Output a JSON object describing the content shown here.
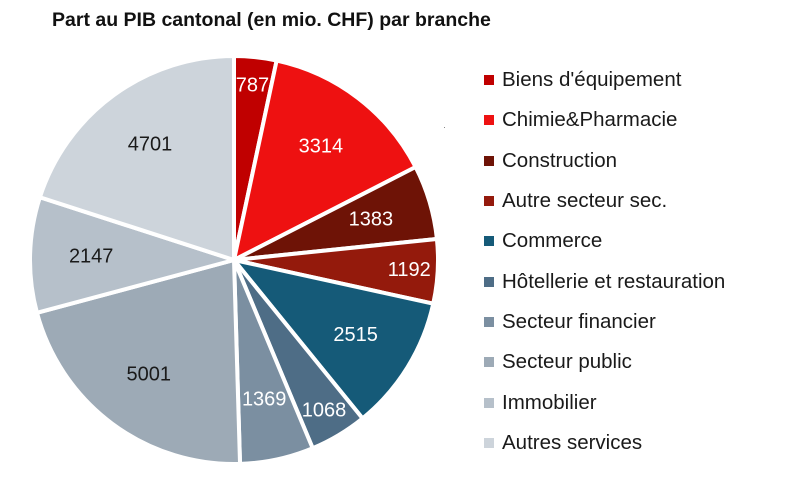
{
  "chart_data": {
    "type": "pie",
    "title": "Part au PIB cantonal (en mio. CHF) par branche",
    "legend_position": "right",
    "slices": [
      {
        "label": "Biens d'équipement",
        "value": 787,
        "color": "#c00000",
        "text_color": "#ffffff"
      },
      {
        "label": "Chimie&Pharmacie",
        "value": 3314,
        "color": "#ee1111",
        "text_color": "#ffffff"
      },
      {
        "label": "Construction",
        "value": 1383,
        "color": "#6e1306",
        "text_color": "#ffffff"
      },
      {
        "label": "Autre secteur sec.",
        "value": 1192,
        "color": "#941a0c",
        "text_color": "#ffffff"
      },
      {
        "label": "Commerce",
        "value": 2515,
        "color": "#155a78",
        "text_color": "#ffffff"
      },
      {
        "label": "Hôtellerie et restauration",
        "value": 1068,
        "color": "#4e6d86",
        "text_color": "#ffffff"
      },
      {
        "label": "Secteur financier",
        "value": 1369,
        "color": "#7b8fa1",
        "text_color": "#ffffff"
      },
      {
        "label": "Secteur public",
        "value": 5001,
        "color": "#9daab6",
        "text_color": "#1a1a1a"
      },
      {
        "label": "Immobilier",
        "value": 2147,
        "color": "#b6c0ca",
        "text_color": "#1a1a1a"
      },
      {
        "label": "Autres services",
        "value": 4701,
        "color": "#cdd4db",
        "text_color": "#1a1a1a"
      }
    ]
  }
}
